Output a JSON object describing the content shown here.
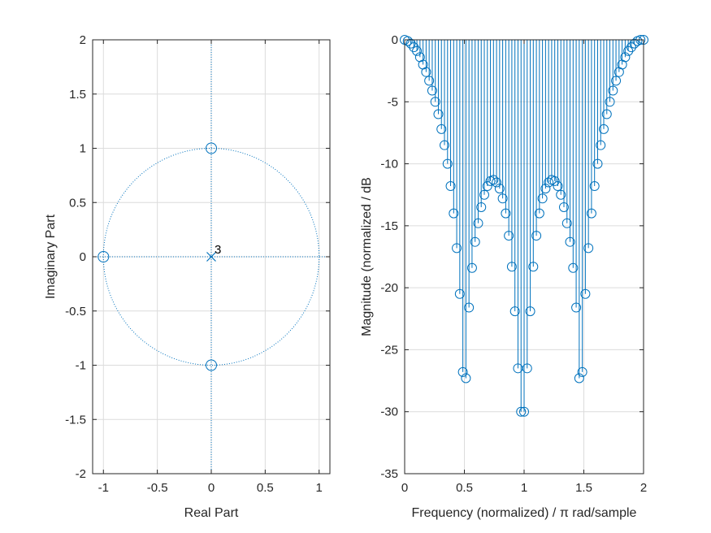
{
  "chart_data": [
    {
      "type": "scatter",
      "subtype": "pole-zero",
      "xlabel": "Real Part",
      "ylabel": "Imaginary Part",
      "xlim": [
        -1.1,
        1.1
      ],
      "ylim": [
        -2,
        2
      ],
      "xticks": [
        -1,
        -0.5,
        0,
        0.5,
        1
      ],
      "xtick_labels": [
        "-1",
        "-0.5",
        "0",
        "0.5",
        "1"
      ],
      "yticks": [
        2,
        1.5,
        1,
        0.5,
        0,
        -0.5,
        -1,
        -1.5,
        -2
      ],
      "ytick_labels": [
        "2",
        "1.5",
        "1",
        "0.5",
        "0",
        "-0.5",
        "-1",
        "-1.5",
        "-2"
      ],
      "grid": true,
      "unit_circle": true,
      "zeros": [
        [
          -1,
          0
        ],
        [
          0,
          1
        ],
        [
          0,
          -1
        ]
      ],
      "poles": [
        [
          0,
          0
        ]
      ],
      "pole_multiplicity_label": "3",
      "color": "#0072BD"
    },
    {
      "type": "stem",
      "xlabel": "Frequency (normalized) / π rad/sample",
      "ylabel": "Magnitude (normalized / dB",
      "xlim": [
        0,
        2
      ],
      "ylim": [
        -35,
        0
      ],
      "xticks": [
        0,
        0.5,
        1,
        1.5,
        2
      ],
      "xtick_labels": [
        "0",
        "0.5",
        "1",
        "1.5",
        "2"
      ],
      "yticks": [
        0,
        -5,
        -10,
        -15,
        -20,
        -25,
        -30,
        -35
      ],
      "ytick_labels": [
        "0",
        "-5",
        "-10",
        "-15",
        "-20",
        "-25",
        "-30",
        "-35"
      ],
      "grid": true,
      "color": "#0072BD",
      "x": [
        0,
        0.0256,
        0.0513,
        0.0769,
        0.1026,
        0.1282,
        0.1538,
        0.1795,
        0.2051,
        0.2308,
        0.2564,
        0.2821,
        0.3077,
        0.3333,
        0.359,
        0.3846,
        0.4103,
        0.4359,
        0.4615,
        0.4872,
        0.5128,
        0.5385,
        0.5641,
        0.5897,
        0.6154,
        0.641,
        0.6667,
        0.6923,
        0.7179,
        0.7436,
        0.7692,
        0.7949,
        0.8205,
        0.8462,
        0.8718,
        0.8974,
        0.9231,
        0.9487,
        0.9744,
        1.0,
        1.0256,
        1.0513,
        1.0769,
        1.1026,
        1.1282,
        1.1538,
        1.1795,
        1.2051,
        1.2308,
        1.2564,
        1.2821,
        1.3077,
        1.3333,
        1.359,
        1.3846,
        1.4103,
        1.4359,
        1.4615,
        1.4872,
        1.5128,
        1.5385,
        1.5641,
        1.5897,
        1.6154,
        1.641,
        1.6667,
        1.6923,
        1.7179,
        1.7436,
        1.7692,
        1.7949,
        1.8205,
        1.8462,
        1.8718,
        1.8974,
        1.9231,
        1.9487,
        1.9744,
        2.0
      ],
      "y": [
        0,
        -0.1,
        -0.3,
        -0.6,
        -0.9,
        -1.4,
        -2.0,
        -2.6,
        -3.3,
        -4.1,
        -5.0,
        -6.0,
        -7.2,
        -8.5,
        -10.0,
        -11.8,
        -14.0,
        -16.8,
        -20.5,
        -26.8,
        -27.3,
        -21.6,
        -18.4,
        -16.3,
        -14.8,
        -13.5,
        -12.5,
        -11.8,
        -11.4,
        -11.3,
        -11.5,
        -12.0,
        -12.8,
        -14.0,
        -15.8,
        -18.3,
        -21.9,
        -26.5,
        -30.0,
        -30.0,
        -26.5,
        -21.9,
        -18.3,
        -15.8,
        -14.0,
        -12.8,
        -12.0,
        -11.5,
        -11.3,
        -11.4,
        -11.8,
        -12.5,
        -13.5,
        -14.8,
        -16.3,
        -18.4,
        -21.6,
        -27.3,
        -26.8,
        -20.5,
        -16.8,
        -14.0,
        -11.8,
        -10.0,
        -8.5,
        -7.2,
        -6.0,
        -5.0,
        -4.1,
        -3.3,
        -2.6,
        -2.0,
        -1.4,
        -0.9,
        -0.6,
        -0.3,
        -0.1,
        0,
        0
      ]
    }
  ]
}
